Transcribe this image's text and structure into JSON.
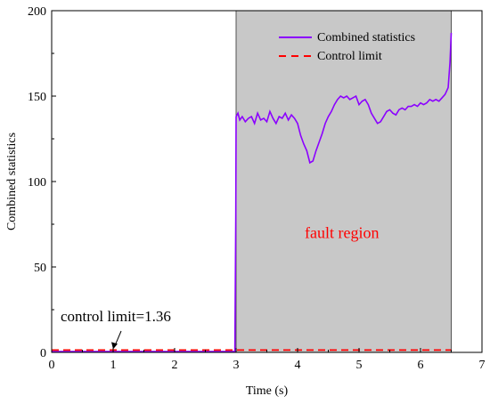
{
  "chart_data": {
    "type": "line",
    "xlabel": "Time (s)",
    "ylabel": "Combined statistics",
    "xlim": [
      0,
      7
    ],
    "ylim": [
      0,
      200
    ],
    "xticks": [
      0,
      1,
      2,
      3,
      4,
      5,
      6,
      7
    ],
    "yticks": [
      0,
      50,
      100,
      150,
      200
    ],
    "grid": false,
    "legend_position": "top-right",
    "series": [
      {
        "name": "Combined statistics",
        "color": "#8B00FF",
        "style": "solid",
        "x": [
          0,
          0.5,
          1.0,
          1.5,
          2.0,
          2.5,
          2.98,
          2.995,
          3.0,
          3.03,
          3.06,
          3.1,
          3.15,
          3.2,
          3.25,
          3.3,
          3.35,
          3.4,
          3.45,
          3.5,
          3.55,
          3.6,
          3.65,
          3.7,
          3.75,
          3.8,
          3.85,
          3.9,
          3.95,
          4.0,
          4.05,
          4.1,
          4.15,
          4.2,
          4.25,
          4.3,
          4.35,
          4.4,
          4.45,
          4.5,
          4.55,
          4.6,
          4.65,
          4.7,
          4.75,
          4.8,
          4.85,
          4.9,
          4.95,
          5.0,
          5.05,
          5.1,
          5.15,
          5.2,
          5.25,
          5.3,
          5.35,
          5.4,
          5.45,
          5.5,
          5.55,
          5.6,
          5.65,
          5.7,
          5.75,
          5.8,
          5.85,
          5.9,
          5.95,
          6.0,
          6.05,
          6.1,
          6.15,
          6.2,
          6.25,
          6.3,
          6.35,
          6.4,
          6.45,
          6.48,
          6.5
        ],
        "y": [
          0.5,
          0.5,
          0.5,
          0.5,
          0.5,
          0.5,
          0.5,
          80,
          138,
          140,
          136,
          138,
          135,
          137,
          138,
          134,
          140,
          136,
          137,
          135,
          141,
          137,
          134,
          138,
          137,
          140,
          136,
          139,
          137,
          134,
          127,
          122,
          118,
          111,
          112,
          118,
          123,
          128,
          134,
          138,
          141,
          145,
          148,
          150,
          149,
          150,
          148,
          149,
          150,
          145,
          147,
          148,
          145,
          140,
          137,
          134,
          135,
          138,
          141,
          142,
          140,
          139,
          142,
          143,
          142,
          144,
          144,
          145,
          144,
          146,
          145,
          146,
          148,
          147,
          148,
          147,
          149,
          151,
          155,
          170,
          187
        ]
      },
      {
        "name": "Control limit",
        "color": "#FF0000",
        "style": "dashed",
        "x": [
          0,
          6.5
        ],
        "y": [
          1.36,
          1.36
        ]
      }
    ],
    "shaded_region": {
      "x_start": 3.0,
      "x_end": 6.5,
      "color": "#C8C8C8"
    },
    "annotations": [
      {
        "text": "control limit=1.36",
        "x": 1.0,
        "y": 1.36,
        "color": "#000000"
      },
      {
        "text": "fault region",
        "x": 4.75,
        "y": 70,
        "color": "#FF0000"
      }
    ]
  }
}
